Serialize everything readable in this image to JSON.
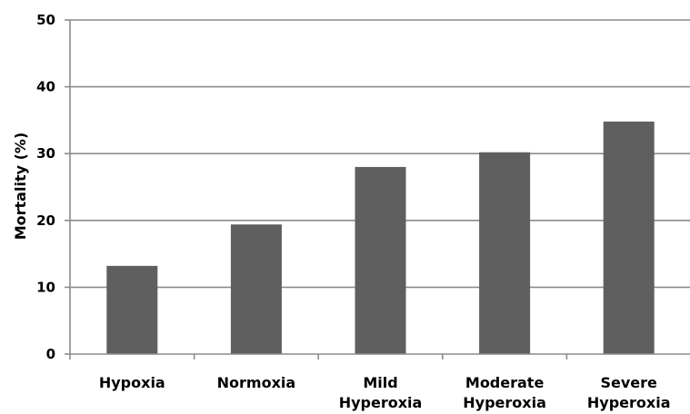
{
  "chart_data": {
    "type": "bar",
    "title": "",
    "xlabel": "",
    "ylabel": "Mortality (%)",
    "ylim": [
      0,
      50
    ],
    "yticks": [
      0,
      10,
      20,
      30,
      40,
      50
    ],
    "grid": true,
    "legend": "none",
    "bar_color": "#5f5f5f",
    "grid_color": "#8c8c8c",
    "categories": [
      [
        "Hypoxia"
      ],
      [
        "Normoxia"
      ],
      [
        "Mild",
        "Hyperoxia"
      ],
      [
        "Moderate",
        "Hyperoxia"
      ],
      [
        "Severe",
        "Hyperoxia"
      ]
    ],
    "values": [
      13.2,
      19.4,
      28.0,
      30.2,
      34.8
    ]
  }
}
